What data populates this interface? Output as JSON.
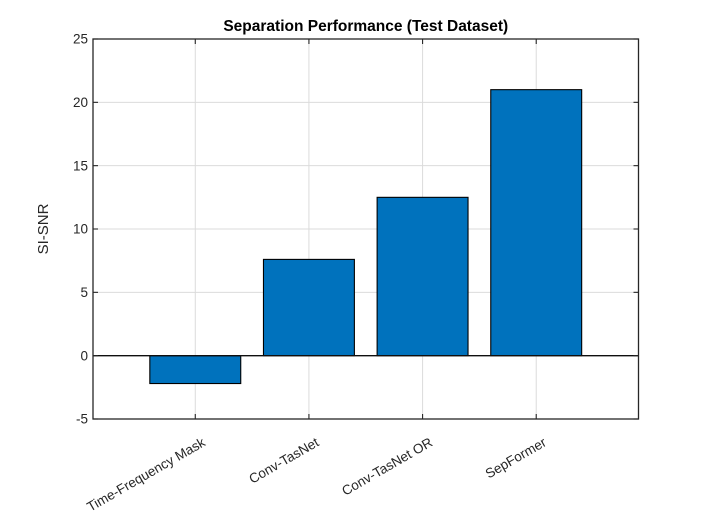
{
  "chart_data": {
    "type": "bar",
    "title": "Separation Performance (Test Dataset)",
    "xlabel": "",
    "ylabel": "SI-SNR",
    "categories": [
      "Time-Frequency Mask",
      "Conv-TasNet",
      "Conv-TasNet OR",
      "SepFormer"
    ],
    "values": [
      -2.2,
      7.6,
      12.5,
      21.0
    ],
    "x_positions": [
      1,
      2,
      3,
      4
    ],
    "xlim": [
      0.1,
      4.9
    ],
    "ylim": [
      -5,
      25
    ],
    "yticks": [
      -5,
      0,
      5,
      10,
      15,
      20,
      25
    ],
    "baseline_value": 0,
    "bar_width": 0.8,
    "grid": true,
    "box": true,
    "tick_direction": "in",
    "xtick_rotation_deg": 30,
    "legend_position": "none",
    "colors": {
      "bar_fill": "#0072BD",
      "bar_edge": "#000000",
      "axis": "#262626",
      "grid_line": "#DBDBDB",
      "baseline": "#0F0F0F",
      "tick_label": "#262626",
      "title": "#000000",
      "background": "#FFFFFF"
    }
  }
}
